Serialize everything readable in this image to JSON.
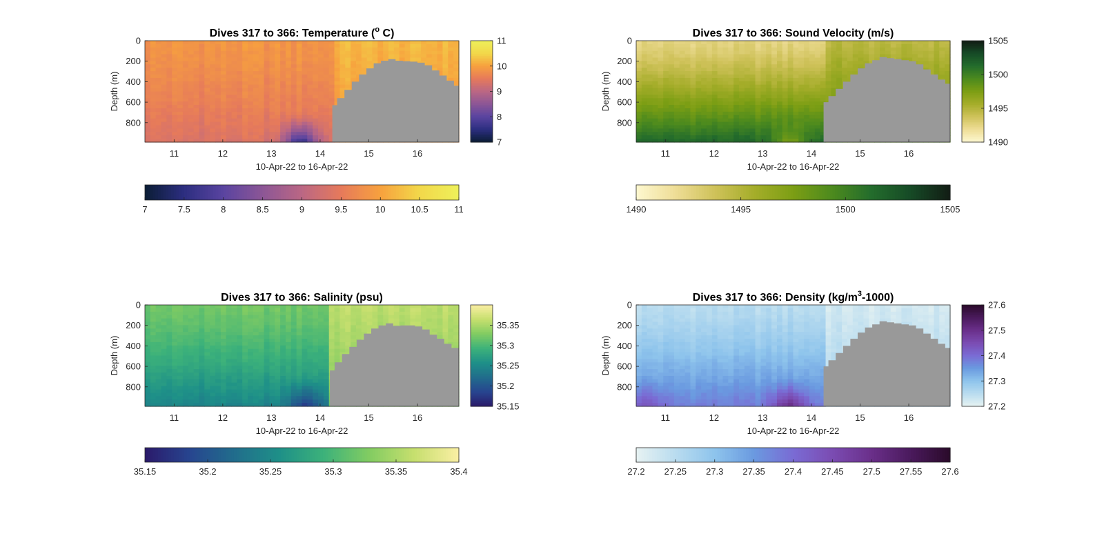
{
  "figure": {
    "background": "#ffffff",
    "mask_color": "#999999"
  },
  "chart_data": [
    {
      "id": "temperature",
      "type": "heatmap",
      "title": "Dives 317 to 366: Temperature (",
      "title_sup": "o",
      "title_end": " C)",
      "xlabel": "10-Apr-22 to 16-Apr-22",
      "ylabel": "Depth (m)",
      "xlim": [
        10.4,
        16.85
      ],
      "ylim": [
        990,
        0
      ],
      "xticks": [
        "11",
        "12",
        "13",
        "14",
        "15",
        "16"
      ],
      "yticks": [
        "0",
        "200",
        "400",
        "600",
        "800"
      ],
      "colormap": [
        "#0b1d35",
        "#2c2e80",
        "#5a44a0",
        "#8c5696",
        "#bb6784",
        "#e67a5b",
        "#f7a13e",
        "#f2d84a",
        "#eef05a"
      ],
      "clim": [
        7,
        11
      ],
      "vertical_colorbar_ticks": [
        "7",
        "8",
        "9",
        "10",
        "11"
      ],
      "horizontal_colorbar_ticks": [
        "7",
        "7.5",
        "8",
        "8.5",
        "9",
        "9.5",
        "10",
        "10.5",
        "11"
      ],
      "data_cutoff_day": 14.25,
      "field": {
        "surface_value": 9.85,
        "deep_value": 9.35,
        "east_surface_value": 10.2,
        "east_deep_value": 9.9,
        "bottom_anomaly": [
          {
            "day": 13.6,
            "value": 7.6
          }
        ]
      },
      "unsampled_region": {
        "day": [
          14.25,
          14.35,
          14.5,
          14.65,
          14.8,
          14.95,
          15.1,
          15.25,
          15.4,
          15.55,
          15.7,
          15.85,
          16.0,
          16.15,
          16.3,
          16.45,
          16.6,
          16.75,
          16.85
        ],
        "top_depth_m": [
          630,
          560,
          480,
          400,
          330,
          270,
          220,
          195,
          180,
          195,
          200,
          205,
          215,
          240,
          290,
          340,
          390,
          440,
          470
        ]
      }
    },
    {
      "id": "sound_velocity",
      "type": "heatmap",
      "title": "Dives 317 to 366: Sound Velocity (m/s)",
      "xlabel": "10-Apr-22 to 16-Apr-22",
      "ylabel": "Depth (m)",
      "xlim": [
        10.4,
        16.85
      ],
      "ylim": [
        990,
        0
      ],
      "xticks": [
        "11",
        "12",
        "13",
        "14",
        "15",
        "16"
      ],
      "yticks": [
        "0",
        "200",
        "400",
        "600",
        "800"
      ],
      "colormap": [
        "#fdf8d0",
        "#eedd96",
        "#cfc25a",
        "#a5ad2a",
        "#7c9e14",
        "#4c8a1e",
        "#236c2c",
        "#164a26",
        "#121c14"
      ],
      "clim": [
        1490,
        1505
      ],
      "vertical_colorbar_ticks": [
        "1490",
        "1495",
        "1500",
        "1505"
      ],
      "horizontal_colorbar_ticks": [
        "1490",
        "1495",
        "1500",
        "1505"
      ],
      "data_cutoff_day": 14.25,
      "field": {
        "surface_value": 1492.5,
        "deep_value": 1501.5,
        "east_surface_value": 1494.5,
        "east_deep_value": 1499,
        "bottom_anomaly": [
          {
            "day": 13.55,
            "value": 1497.5
          }
        ]
      },
      "unsampled_region": {
        "day": [
          14.25,
          14.35,
          14.5,
          14.65,
          14.8,
          14.95,
          15.1,
          15.25,
          15.4,
          15.55,
          15.7,
          15.85,
          16.0,
          16.15,
          16.3,
          16.45,
          16.6,
          16.75,
          16.85
        ],
        "top_depth_m": [
          600,
          540,
          470,
          400,
          330,
          270,
          220,
          190,
          160,
          170,
          180,
          190,
          200,
          230,
          280,
          330,
          380,
          420,
          440
        ]
      }
    },
    {
      "id": "salinity",
      "type": "heatmap",
      "title": "Dives 317 to 366: Salinity (psu)",
      "xlabel": "10-Apr-22 to 16-Apr-22",
      "ylabel": "Depth (m)",
      "xlim": [
        10.4,
        16.85
      ],
      "ylim": [
        990,
        0
      ],
      "xticks": [
        "11",
        "12",
        "13",
        "14",
        "15",
        "16"
      ],
      "yticks": [
        "0",
        "200",
        "400",
        "600",
        "800"
      ],
      "colormap": [
        "#2b1a6b",
        "#27458f",
        "#216d8c",
        "#1e9088",
        "#3db27a",
        "#82cc62",
        "#c6df6e",
        "#fbefa4"
      ],
      "clim": [
        35.15,
        35.4
      ],
      "vertical_colorbar_ticks": [
        "35.15",
        "35.2",
        "35.25",
        "35.3",
        "35.35"
      ],
      "horizontal_colorbar_ticks": [
        "35.15",
        "35.2",
        "35.25",
        "35.3",
        "35.35",
        "35.4"
      ],
      "data_cutoff_day": 14.2,
      "field": {
        "surface_value": 35.32,
        "deep_value": 35.245,
        "east_surface_value": 35.36,
        "east_deep_value": 35.33,
        "bottom_anomaly": [
          {
            "day": 13.7,
            "value": 35.18
          }
        ]
      },
      "unsampled_region": {
        "day": [
          14.2,
          14.3,
          14.45,
          14.6,
          14.75,
          14.9,
          15.05,
          15.2,
          15.35,
          15.5,
          15.65,
          15.8,
          15.95,
          16.1,
          16.25,
          16.4,
          16.55,
          16.7,
          16.85
        ],
        "top_depth_m": [
          640,
          560,
          480,
          410,
          340,
          280,
          230,
          200,
          180,
          205,
          200,
          200,
          210,
          240,
          290,
          330,
          380,
          420,
          460
        ]
      }
    },
    {
      "id": "density",
      "type": "heatmap",
      "title": "Dives 317 to 366: Density (kg/m",
      "title_sup": "3",
      "title_end": "-1000)",
      "xlabel": "10-Apr-22 to 16-Apr-22",
      "ylabel": "Depth (m)",
      "xlim": [
        10.4,
        16.85
      ],
      "ylim": [
        990,
        0
      ],
      "xticks": [
        "11",
        "12",
        "13",
        "14",
        "15",
        "16"
      ],
      "yticks": [
        "0",
        "200",
        "400",
        "600",
        "800"
      ],
      "colormap": [
        "#e6f2f2",
        "#b9dcef",
        "#8ec4ec",
        "#6a9ae0",
        "#7a6bd4",
        "#7b4cb2",
        "#6a2f8a",
        "#4a1a5c",
        "#2a0a2a"
      ],
      "clim": [
        27.2,
        27.6
      ],
      "vertical_colorbar_ticks": [
        "27.2",
        "27.3",
        "27.4",
        "27.5",
        "27.6"
      ],
      "horizontal_colorbar_ticks": [
        "27.2",
        "27.25",
        "27.3",
        "27.35",
        "27.4",
        "27.45",
        "27.5",
        "27.55",
        "27.6"
      ],
      "data_cutoff_day": 14.25,
      "field": {
        "surface_value": 27.25,
        "deep_value": 27.38,
        "east_surface_value": 27.22,
        "east_deep_value": 27.27,
        "bottom_anomaly": [
          {
            "day": 13.55,
            "value": 27.5
          },
          {
            "day": 10.6,
            "value": 27.43
          }
        ]
      },
      "unsampled_region": {
        "day": [
          14.25,
          14.35,
          14.5,
          14.65,
          14.8,
          14.95,
          15.1,
          15.25,
          15.4,
          15.55,
          15.7,
          15.85,
          16.0,
          16.15,
          16.3,
          16.45,
          16.6,
          16.75,
          16.85
        ],
        "top_depth_m": [
          600,
          540,
          470,
          400,
          330,
          270,
          220,
          190,
          160,
          170,
          180,
          190,
          200,
          230,
          280,
          330,
          380,
          420,
          440
        ]
      }
    }
  ]
}
